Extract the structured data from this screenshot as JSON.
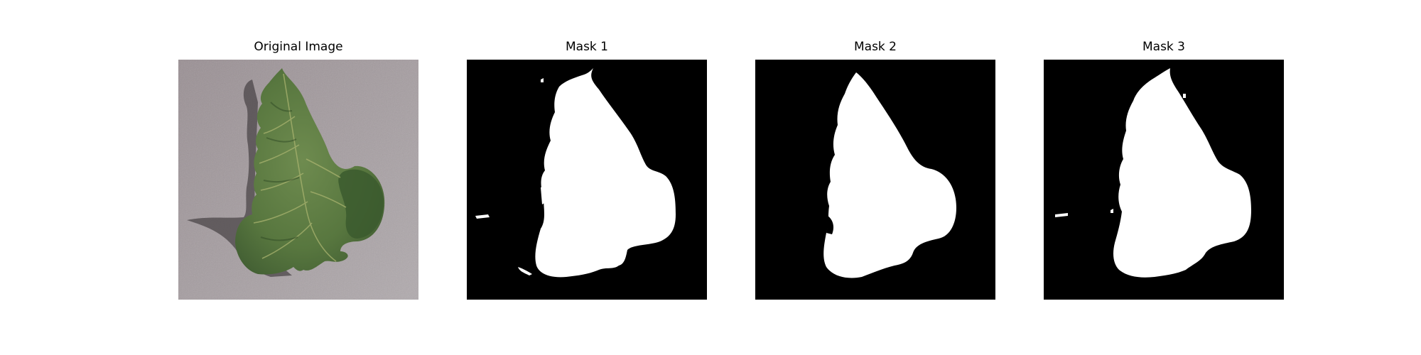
{
  "figure": {
    "panels": [
      {
        "title": "Original Image",
        "content": "leaf-photo"
      },
      {
        "title": "Mask 1",
        "content": "binary-mask"
      },
      {
        "title": "Mask 2",
        "content": "binary-mask"
      },
      {
        "title": "Mask 3",
        "content": "binary-mask"
      }
    ],
    "colors": {
      "background": "#ffffff",
      "mask_background": "#000000",
      "mask_foreground": "#ffffff",
      "surface": "#9d9598",
      "leaf_dark": "#3e5a31",
      "leaf_mid": "#58773f",
      "leaf_light": "#6e8b4f",
      "shadow": "#4b4548"
    }
  }
}
